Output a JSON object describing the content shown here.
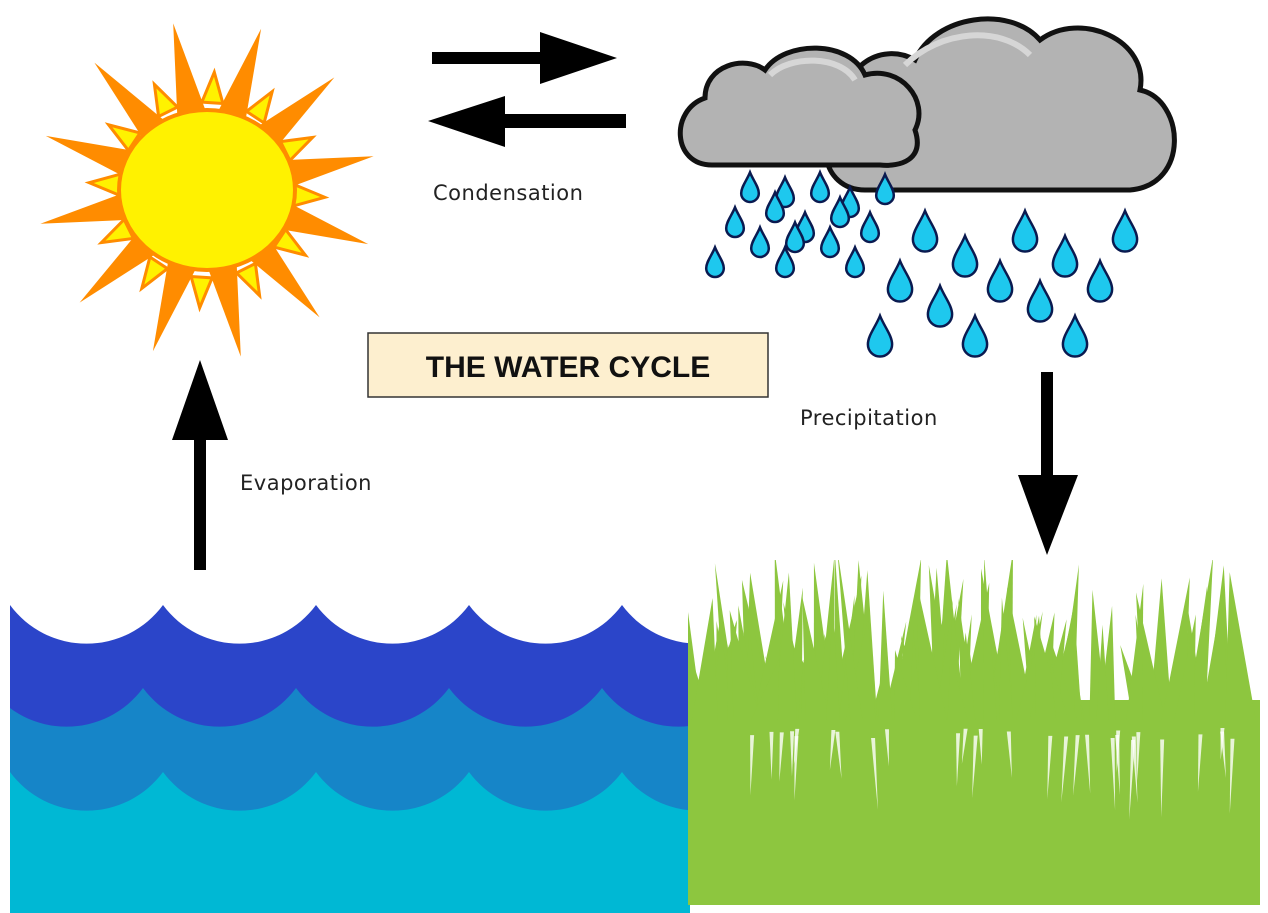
{
  "title": "THE WATER CYCLE",
  "labels": {
    "condensation": "Condensation",
    "precipitation": "Precipitation",
    "evaporation": "Evaporation"
  }
}
